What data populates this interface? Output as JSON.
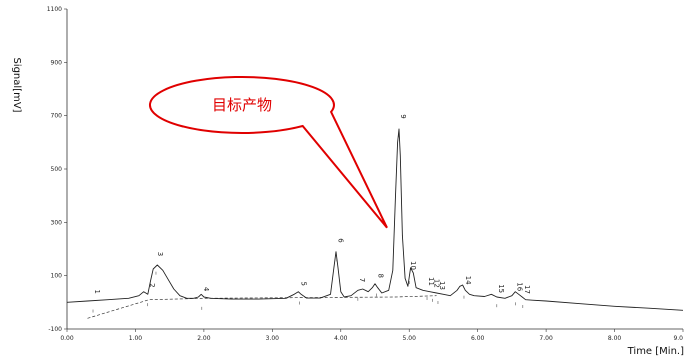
{
  "chart_data": {
    "type": "line",
    "title": "",
    "xlabel": "Time [Min.]",
    "ylabel": "Signal[mV]",
    "xlim": [
      0,
      9
    ],
    "ylim": [
      -100,
      1100
    ],
    "grid": false,
    "x_ticks": [
      {
        "value": 0,
        "label": "0.00"
      },
      {
        "value": 1,
        "label": "1.00"
      },
      {
        "value": 2,
        "label": "2.00"
      },
      {
        "value": 3,
        "label": "3.00"
      },
      {
        "value": 4,
        "label": "4.00"
      },
      {
        "value": 5,
        "label": "5.00"
      },
      {
        "value": 6,
        "label": "6.00"
      },
      {
        "value": 7,
        "label": "7.00"
      },
      {
        "value": 8,
        "label": "8.00"
      },
      {
        "value": 9,
        "label": "9.0"
      }
    ],
    "y_ticks": [
      {
        "value": -100,
        "label": "-100"
      },
      {
        "value": 100,
        "label": "100"
      },
      {
        "value": 300,
        "label": "300"
      },
      {
        "value": 500,
        "label": "500"
      },
      {
        "value": 700,
        "label": "700"
      },
      {
        "value": 900,
        "label": "900"
      },
      {
        "value": 1100,
        "label": "1100"
      }
    ],
    "series": [
      {
        "color": "#222222",
        "x": [
          0.0,
          0.3,
          0.6,
          0.9,
          1.05,
          1.12,
          1.18,
          1.22,
          1.26,
          1.32,
          1.4,
          1.48,
          1.56,
          1.65,
          1.75,
          1.85,
          1.92,
          1.96,
          2.0,
          2.1,
          2.4,
          2.8,
          3.2,
          3.32,
          3.38,
          3.42,
          3.5,
          3.7,
          3.85,
          3.9,
          3.93,
          3.96,
          4.0,
          4.05,
          4.15,
          4.25,
          4.32,
          4.4,
          4.46,
          4.5,
          4.54,
          4.6,
          4.7,
          4.76,
          4.8,
          4.83,
          4.85,
          4.87,
          4.9,
          4.94,
          4.98,
          5.02,
          5.06,
          5.1,
          5.2,
          5.3,
          5.4,
          5.5,
          5.6,
          5.7,
          5.74,
          5.78,
          5.82,
          5.88,
          5.95,
          6.1,
          6.2,
          6.28,
          6.4,
          6.5,
          6.55,
          6.6,
          6.65,
          6.7,
          6.8,
          7.0,
          7.5,
          8.0,
          8.5,
          9.0
        ],
        "y": [
          0,
          5,
          10,
          15,
          25,
          40,
          30,
          80,
          125,
          140,
          120,
          85,
          50,
          25,
          15,
          15,
          20,
          30,
          20,
          15,
          12,
          12,
          15,
          30,
          40,
          30,
          16,
          16,
          30,
          130,
          190,
          130,
          40,
          20,
          25,
          45,
          50,
          40,
          55,
          70,
          55,
          35,
          45,
          120,
          400,
          600,
          650,
          550,
          250,
          90,
          60,
          130,
          110,
          55,
          45,
          40,
          35,
          30,
          25,
          45,
          60,
          65,
          45,
          30,
          25,
          22,
          30,
          20,
          15,
          25,
          40,
          30,
          20,
          10,
          8,
          5,
          -5,
          -15,
          -22,
          -30
        ]
      }
    ],
    "integration_baseline": {
      "x": [
        0.3,
        1.2,
        2.0,
        4.8,
        5.4
      ],
      "y": [
        -60,
        10,
        15,
        20,
        25
      ]
    },
    "peaks": [
      {
        "label": "1",
        "x": 0.38,
        "y": 48
      },
      {
        "label": "2",
        "x": 1.18,
        "y": 72
      },
      {
        "label": "3",
        "x": 1.3,
        "y": 190
      },
      {
        "label": "4",
        "x": 1.97,
        "y": 58
      },
      {
        "label": "5",
        "x": 3.4,
        "y": 78
      },
      {
        "label": "6",
        "x": 3.94,
        "y": 240
      },
      {
        "label": "7",
        "x": 4.25,
        "y": 92
      },
      {
        "label": "8",
        "x": 4.52,
        "y": 108
      },
      {
        "label": "9",
        "x": 4.85,
        "y": 705
      },
      {
        "label": "10",
        "x": 5.0,
        "y": 155
      },
      {
        "label": "11",
        "x": 5.26,
        "y": 95
      },
      {
        "label": "12",
        "x": 5.34,
        "y": 88
      },
      {
        "label": "13",
        "x": 5.42,
        "y": 80
      },
      {
        "label": "14",
        "x": 5.8,
        "y": 100
      },
      {
        "label": "15",
        "x": 6.28,
        "y": 68
      },
      {
        "label": "16",
        "x": 6.55,
        "y": 75
      },
      {
        "label": "17",
        "x": 6.66,
        "y": 65
      }
    ],
    "annotation": {
      "text": "目标产物",
      "target_peak": "9",
      "style": "speech-bubble",
      "color": "#e00000"
    }
  }
}
